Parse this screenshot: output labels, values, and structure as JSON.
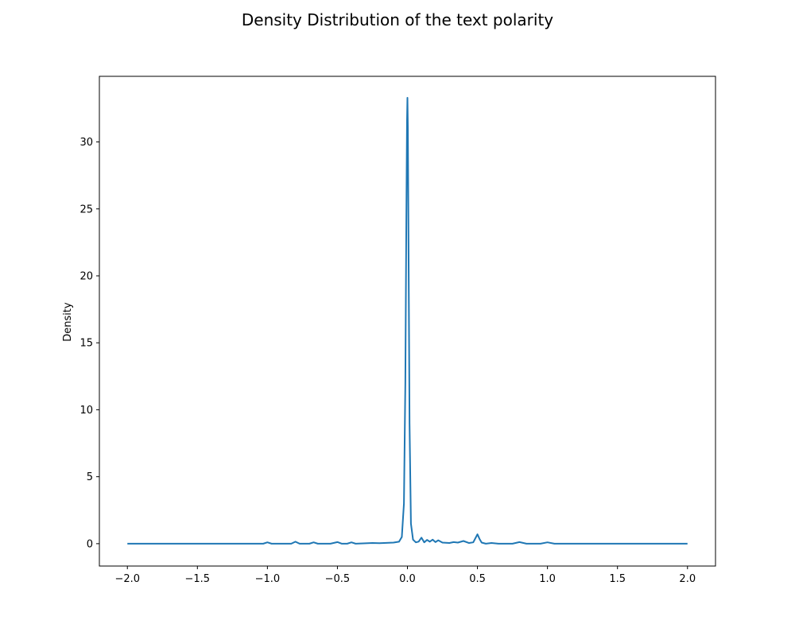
{
  "chart_data": {
    "type": "line",
    "title": "Density Distribution of the text polarity",
    "xlabel": "",
    "ylabel": "Density",
    "xlim": [
      -2.2,
      2.2
    ],
    "ylim": [
      -1.67,
      34.9
    ],
    "x_ticks": [
      -2.0,
      -1.5,
      -1.0,
      -0.5,
      0.0,
      0.5,
      1.0,
      1.5,
      2.0
    ],
    "x_tick_labels": [
      "−2.0",
      "−1.5",
      "−1.0",
      "−0.5",
      "0.0",
      "0.5",
      "1.0",
      "1.5",
      "2.0"
    ],
    "y_ticks": [
      0,
      5,
      10,
      15,
      20,
      25,
      30
    ],
    "y_tick_labels": [
      "0",
      "5",
      "10",
      "15",
      "20",
      "25",
      "30"
    ],
    "grid": false,
    "line_color": "#1f77b4",
    "series": [
      {
        "x": [
          -2.0,
          -1.2,
          -1.03,
          -1.0,
          -0.97,
          -0.9,
          -0.83,
          -0.8,
          -0.77,
          -0.7,
          -0.67,
          -0.64,
          -0.55,
          -0.5,
          -0.47,
          -0.43,
          -0.4,
          -0.37,
          -0.3,
          -0.25,
          -0.2,
          -0.15,
          -0.1,
          -0.06,
          -0.04,
          -0.025,
          -0.015,
          -0.008,
          -0.003,
          0.0,
          0.003,
          0.008,
          0.015,
          0.025,
          0.04,
          0.06,
          0.08,
          0.1,
          0.12,
          0.14,
          0.16,
          0.18,
          0.2,
          0.22,
          0.25,
          0.3,
          0.33,
          0.36,
          0.4,
          0.44,
          0.47,
          0.485,
          0.5,
          0.515,
          0.53,
          0.56,
          0.6,
          0.65,
          0.75,
          0.8,
          0.85,
          0.95,
          1.0,
          1.05,
          1.2,
          2.0
        ],
        "y": [
          0.0,
          0.0,
          0.0,
          0.1,
          0.0,
          0.0,
          0.0,
          0.15,
          0.0,
          0.0,
          0.1,
          0.0,
          0.0,
          0.12,
          0.0,
          0.0,
          0.1,
          0.0,
          0.03,
          0.05,
          0.04,
          0.06,
          0.08,
          0.15,
          0.5,
          3.0,
          12.0,
          24.0,
          31.5,
          33.3,
          31.0,
          22.0,
          9.0,
          1.5,
          0.3,
          0.1,
          0.15,
          0.45,
          0.1,
          0.28,
          0.15,
          0.3,
          0.12,
          0.25,
          0.08,
          0.05,
          0.12,
          0.08,
          0.2,
          0.05,
          0.1,
          0.4,
          0.7,
          0.35,
          0.08,
          0.0,
          0.05,
          0.0,
          0.0,
          0.12,
          0.0,
          0.0,
          0.1,
          0.0,
          0.0,
          0.0
        ]
      }
    ]
  }
}
